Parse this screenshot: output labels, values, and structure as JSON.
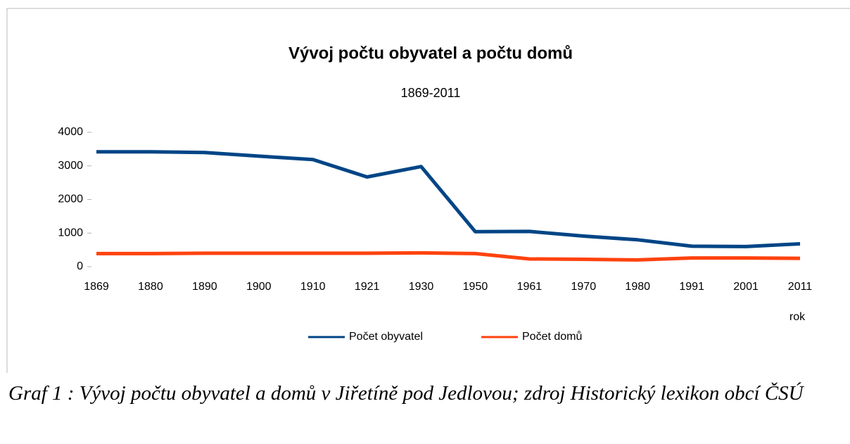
{
  "chart_data": {
    "type": "line",
    "title": "Vývoj počtu obyvatel a počtu domů",
    "subtitle": "1869-2011",
    "x_label": "rok",
    "categories": [
      "1869",
      "1880",
      "1890",
      "1900",
      "1910",
      "1921",
      "1930",
      "1950",
      "1961",
      "1970",
      "1980",
      "1991",
      "2001",
      "2011"
    ],
    "series": [
      {
        "name": "Počet obyvatel",
        "color": "#004586",
        "values": [
          3420,
          3420,
          3400,
          3290,
          3190,
          2670,
          2980,
          1040,
          1050,
          910,
          800,
          610,
          600,
          680
        ]
      },
      {
        "name": "Počet domů",
        "color": "#ff420e",
        "values": [
          390,
          390,
          400,
          400,
          400,
          400,
          410,
          390,
          230,
          220,
          200,
          260,
          260,
          250
        ]
      }
    ],
    "ylim": [
      0,
      4000
    ],
    "yticks": [
      0,
      1000,
      2000,
      3000,
      4000
    ],
    "legend": "bottom"
  },
  "caption": "Graf 1 : Vývoj počtu obyvatel a domů v Jiřetíně pod Jedlovou; zdroj Historický lexikon obcí ČSÚ"
}
